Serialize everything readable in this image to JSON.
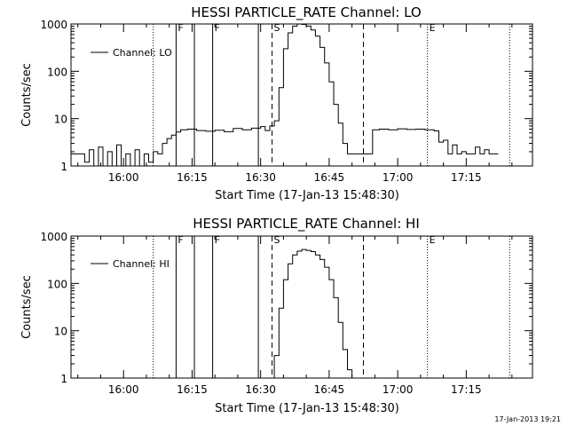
{
  "chart_data": [
    {
      "type": "line",
      "title": "HESSI PARTICLE_RATE Channel: LO",
      "xlabel": "Start Time (17-Jan-13 15:48:30)",
      "ylabel": "Counts/sec",
      "y_scale": "log",
      "ylim": [
        1,
        1000
      ],
      "xlim": [
        "15:48:30",
        "17:29:30"
      ],
      "x_tick_labels": [
        "16:00",
        "16:15",
        "16:30",
        "16:45",
        "17:00",
        "17:15"
      ],
      "y_tick_labels": [
        "1",
        "10",
        "100",
        "1000"
      ],
      "legend": {
        "placement": "top-left",
        "entries": [
          "Channel: LO"
        ]
      },
      "series": [
        {
          "name": "Channel: LO",
          "x": [
            "15:48:30",
            "15:50:00",
            "15:51:30",
            "15:52:30",
            "15:53:30",
            "15:54:30",
            "15:55:30",
            "15:56:30",
            "15:57:30",
            "15:58:30",
            "15:59:30",
            "16:00:30",
            "16:01:30",
            "16:02:30",
            "16:03:30",
            "16:04:30",
            "16:05:30",
            "16:06:30",
            "16:07:30",
            "16:08:30",
            "16:09:30",
            "16:10:30",
            "16:11:30",
            "16:12:30",
            "16:14:00",
            "16:16:00",
            "16:18:00",
            "16:20:00",
            "16:22:00",
            "16:24:00",
            "16:26:00",
            "16:28:00",
            "16:30:00",
            "16:31:00",
            "16:32:00",
            "16:33:00",
            "16:34:00",
            "16:35:00",
            "16:36:00",
            "16:37:00",
            "16:38:00",
            "16:39:00",
            "16:40:00",
            "16:41:00",
            "16:42:00",
            "16:43:00",
            "16:44:00",
            "16:45:00",
            "16:46:00",
            "16:47:00",
            "16:48:00",
            "16:49:00",
            "16:50:00",
            "16:51:00",
            "16:52:00",
            "16:53:00",
            "16:53:30",
            "16:54:30",
            "16:56:00",
            "16:58:00",
            "17:00:00",
            "17:02:00",
            "17:04:00",
            "17:06:00",
            "17:08:00",
            "17:09:00",
            "17:10:00",
            "17:11:00",
            "17:12:00",
            "17:13:00",
            "17:14:00",
            "17:15:00",
            "17:16:00",
            "17:17:00",
            "17:18:00",
            "17:19:00",
            "17:20:00",
            "17:21:00",
            "17:22:00"
          ],
          "y": [
            1.8,
            1.8,
            1.2,
            2.2,
            1.0,
            2.5,
            1.0,
            2.0,
            1.0,
            2.8,
            1.0,
            1.8,
            1.0,
            2.2,
            1.0,
            1.8,
            1.2,
            2.0,
            1.8,
            3.0,
            3.8,
            4.5,
            5.2,
            5.8,
            6.0,
            5.6,
            5.4,
            5.7,
            5.3,
            6.2,
            5.8,
            6.3,
            6.8,
            5.6,
            7.0,
            9.0,
            45,
            300,
            650,
            900,
            1000,
            980,
            900,
            750,
            550,
            320,
            150,
            60,
            20,
            8,
            3,
            1.8,
            1.8,
            1.8,
            1.8,
            1.8,
            1.8,
            5.8,
            6.0,
            5.8,
            6.1,
            5.9,
            6.0,
            5.8,
            5.5,
            3.2,
            3.5,
            1.8,
            2.8,
            1.8,
            2.0,
            1.8,
            1.8,
            2.5,
            1.8,
            2.2,
            1.8,
            1.8,
            1.8
          ]
        }
      ],
      "vertical_lines": [
        {
          "time": "16:06:30",
          "style": "dotted",
          "label": ""
        },
        {
          "time": "16:11:30",
          "style": "solid",
          "label": "F"
        },
        {
          "time": "16:15:30",
          "style": "solid",
          "label": ""
        },
        {
          "time": "16:19:30",
          "style": "solid",
          "label": "F"
        },
        {
          "time": "16:29:30",
          "style": "solid",
          "label": ""
        },
        {
          "time": "16:32:30",
          "style": "dashed",
          "label": "S"
        },
        {
          "time": "16:52:30",
          "style": "dashed",
          "label": ""
        },
        {
          "time": "17:06:30",
          "style": "dotted",
          "label": "E"
        },
        {
          "time": "17:24:30",
          "style": "dotted",
          "label": ""
        }
      ]
    },
    {
      "type": "line",
      "title": "HESSI PARTICLE_RATE Channel: HI",
      "xlabel": "Start Time (17-Jan-13 15:48:30)",
      "ylabel": "Counts/sec",
      "y_scale": "log",
      "ylim": [
        1,
        1000
      ],
      "xlim": [
        "15:48:30",
        "17:29:30"
      ],
      "x_tick_labels": [
        "16:00",
        "16:15",
        "16:30",
        "16:45",
        "17:00",
        "17:15"
      ],
      "y_tick_labels": [
        "1",
        "10",
        "100",
        "1000"
      ],
      "legend": {
        "placement": "top-left",
        "entries": [
          "Channel: HI"
        ]
      },
      "series": [
        {
          "name": "Channel: HI",
          "x": [
            "16:32:30",
            "16:33:00",
            "16:34:00",
            "16:35:00",
            "16:36:00",
            "16:37:00",
            "16:38:00",
            "16:39:00",
            "16:40:00",
            "16:41:00",
            "16:42:00",
            "16:43:00",
            "16:44:00",
            "16:45:00",
            "16:46:00",
            "16:47:00",
            "16:48:00",
            "16:49:00",
            "16:50:00"
          ],
          "y": [
            1.0,
            3.0,
            30,
            120,
            260,
            400,
            480,
            520,
            500,
            470,
            400,
            320,
            220,
            120,
            50,
            15,
            4,
            1.5,
            1.0
          ]
        }
      ],
      "vertical_lines": [
        {
          "time": "16:06:30",
          "style": "dotted",
          "label": ""
        },
        {
          "time": "16:11:30",
          "style": "solid",
          "label": "F"
        },
        {
          "time": "16:15:30",
          "style": "solid",
          "label": ""
        },
        {
          "time": "16:19:30",
          "style": "solid",
          "label": "F"
        },
        {
          "time": "16:29:30",
          "style": "solid",
          "label": ""
        },
        {
          "time": "16:32:30",
          "style": "dashed",
          "label": "S"
        },
        {
          "time": "16:52:30",
          "style": "dashed",
          "label": ""
        },
        {
          "time": "17:06:30",
          "style": "dotted",
          "label": "E"
        },
        {
          "time": "17:24:30",
          "style": "dotted",
          "label": ""
        }
      ]
    }
  ],
  "footer": {
    "timestamp": "17-Jan-2013 19:21"
  }
}
